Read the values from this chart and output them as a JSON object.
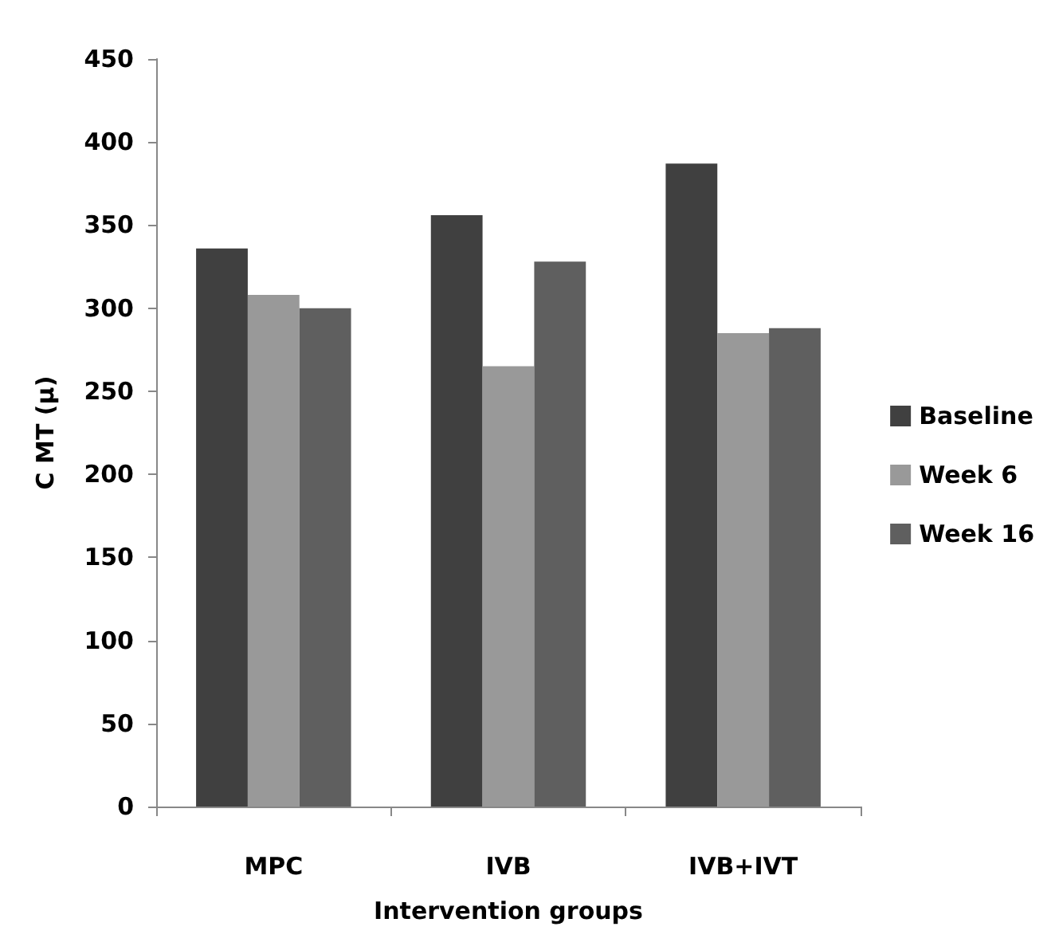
{
  "chart_data": {
    "type": "bar",
    "xlabel": "Intervention groups",
    "ylabel": "C MT (μ)",
    "categories": [
      "MPC",
      "IVB",
      "IVB+IVT"
    ],
    "series": [
      {
        "name": "Baseline",
        "color": "#404040",
        "values": [
          336,
          356,
          387
        ]
      },
      {
        "name": "Week 6",
        "color": "#999999",
        "values": [
          308,
          265,
          285
        ]
      },
      {
        "name": "Week 16",
        "color": "#5f5f5f",
        "values": [
          300,
          328,
          288
        ]
      }
    ],
    "ylim": [
      0,
      450
    ],
    "yticks": [
      0,
      50,
      100,
      150,
      200,
      250,
      300,
      350,
      400,
      450
    ],
    "grid": false,
    "legend": "right"
  }
}
